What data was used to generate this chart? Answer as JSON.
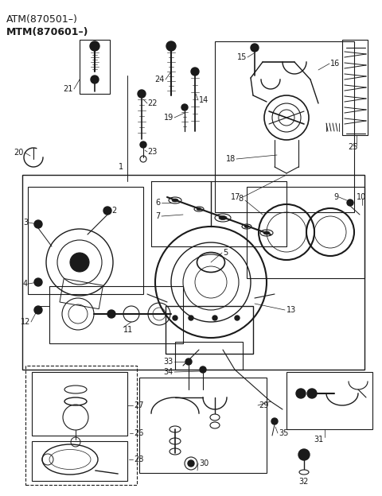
{
  "title_line1": "ATM(870501–)",
  "title_line2": "MTM(870601–)",
  "bg_color": "#ffffff",
  "lc": "#1a1a1a",
  "fig_width": 4.8,
  "fig_height": 6.24,
  "dpi": 100
}
